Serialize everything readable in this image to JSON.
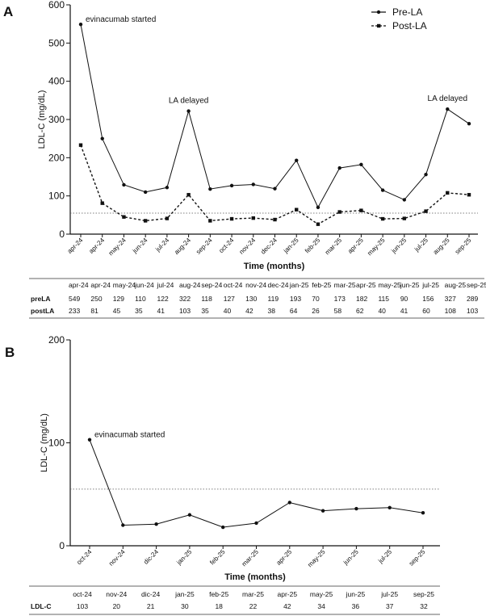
{
  "panels": {
    "a": "A",
    "b": "B"
  },
  "chart_data": [
    {
      "type": "line",
      "ylabel": "LDL-C (mg/dL)",
      "xlabel": "Time (months)",
      "ylim": [
        0,
        600
      ],
      "yticks": [
        0,
        100,
        200,
        300,
        400,
        500,
        600
      ],
      "categories": [
        "apr-24",
        "apr-24",
        "may-24",
        "jun-24",
        "jul-24",
        "aug-24",
        "sep-24",
        "oct-24",
        "nov-24",
        "dec-24",
        "jan-25",
        "feb-25",
        "mar-25",
        "apr-25",
        "may-25",
        "jun-25",
        "jul-25",
        "aug-25",
        "sep-25"
      ],
      "series": [
        {
          "name": "Pre-LA",
          "style": "solid-circle",
          "values": [
            549,
            250,
            129,
            110,
            122,
            322,
            118,
            127,
            130,
            119,
            193,
            70,
            173,
            182,
            115,
            90,
            156,
            327,
            289
          ]
        },
        {
          "name": "Post-LA",
          "style": "dashed-square",
          "values": [
            233,
            81,
            45,
            35,
            41,
            103,
            35,
            40,
            42,
            38,
            64,
            26,
            58,
            62,
            40,
            41,
            60,
            108,
            103
          ]
        }
      ],
      "reference_line": 55,
      "annotations": [
        {
          "text": "evinacumab started",
          "at_index": 0
        },
        {
          "text": "LA delayed",
          "at_index": 5
        },
        {
          "text": "LA delayed",
          "at_index": 17
        }
      ],
      "legend_position": "top-right",
      "grid": false,
      "table": {
        "headers": [
          "apr-24",
          "apr-24",
          "may-24",
          "jun-24",
          "jul-24",
          "aug-24",
          "sep-24",
          "oct-24",
          "nov-24",
          "dec-24",
          "jan-25",
          "feb-25",
          "mar-25",
          "apr-25",
          "may-25",
          "jun-25",
          "jul-25",
          "aug-25",
          "sep-25"
        ],
        "rows": [
          {
            "label": "preLA",
            "values": [
              "549",
              "250",
              "129",
              "110",
              "122",
              "322",
              "118",
              "127",
              "130",
              "119",
              "193",
              "70",
              "173",
              "182",
              "115",
              "90",
              "156",
              "327",
              "289"
            ]
          },
          {
            "label": "postLA",
            "values": [
              "233",
              "81",
              "45",
              "35",
              "41",
              "103",
              "35",
              "40",
              "42",
              "38",
              "64",
              "26",
              "58",
              "62",
              "40",
              "41",
              "60",
              "108",
              "103"
            ]
          }
        ]
      }
    },
    {
      "type": "line",
      "ylabel": "LDL-C (mg/dL)",
      "xlabel": "Time (months)",
      "ylim": [
        0,
        200
      ],
      "yticks": [
        0,
        100,
        200
      ],
      "categories": [
        "oct-24",
        "nov-24",
        "dic-24",
        "jan-25",
        "feb-25",
        "mar-25",
        "apr-25",
        "may-25",
        "jun-25",
        "jul-25",
        "sep-25"
      ],
      "series": [
        {
          "name": "",
          "style": "solid-circle",
          "values": [
            103,
            20,
            21,
            30,
            18,
            22,
            42,
            34,
            36,
            37,
            32
          ]
        }
      ],
      "reference_line": 55,
      "annotations": [
        {
          "text": "evinacumab started",
          "at_index": 0
        }
      ],
      "grid": false,
      "table": {
        "headers": [
          "oct-24",
          "nov-24",
          "dic-24",
          "jan-25",
          "feb-25",
          "mar-25",
          "apr-25",
          "may-25",
          "jun-25",
          "jul-25",
          "sep-25"
        ],
        "rows": [
          {
            "label": "LDL-C",
            "values": [
              "103",
              "20",
              "21",
              "30",
              "18",
              "22",
              "42",
              "34",
              "36",
              "37",
              "32"
            ]
          }
        ]
      }
    }
  ]
}
